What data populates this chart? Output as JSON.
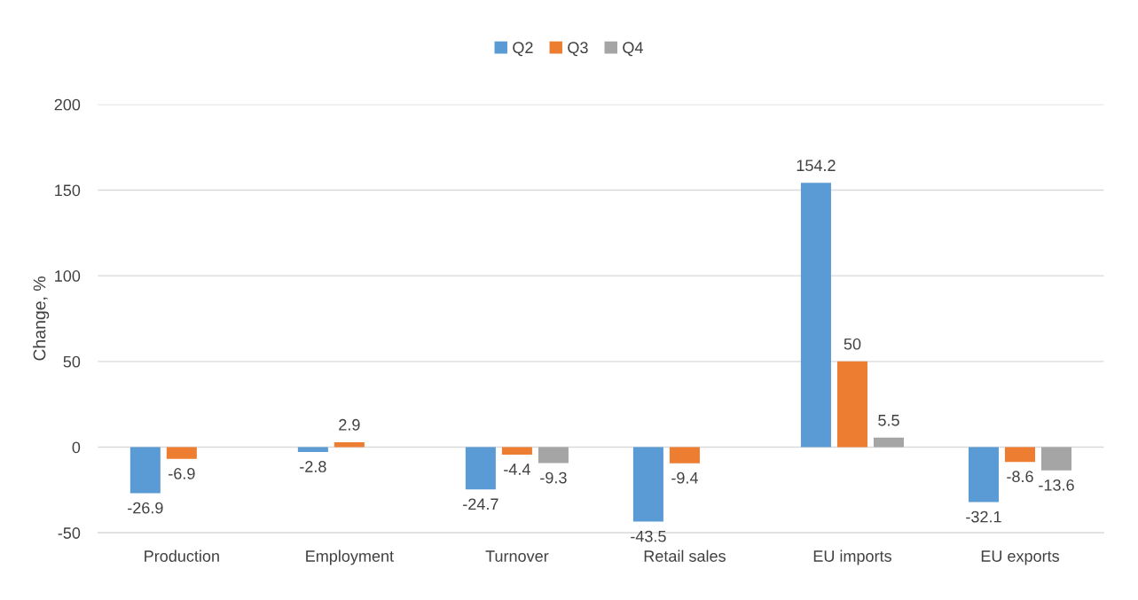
{
  "chart_data": {
    "type": "bar",
    "ylabel": "Change, %",
    "categories": [
      "Production",
      "Employment",
      "Turnover",
      "Retail sales",
      "EU imports",
      "EU exports"
    ],
    "series": [
      {
        "name": "Q2",
        "color": "#5b9bd5",
        "values": [
          -26.9,
          -2.8,
          -24.7,
          -43.5,
          154.2,
          -32.1
        ]
      },
      {
        "name": "Q3",
        "color": "#ed7d31",
        "values": [
          -6.9,
          2.9,
          -4.4,
          -9.4,
          50,
          -8.6
        ]
      },
      {
        "name": "Q4",
        "color": "#a5a5a5",
        "values": [
          null,
          null,
          -9.3,
          null,
          5.5,
          -13.6
        ]
      }
    ],
    "ylim": [
      -50,
      200
    ],
    "yticks": [
      -50,
      0,
      50,
      100,
      150,
      200
    ],
    "grid": "y",
    "legend": "top",
    "data_labels": true
  }
}
